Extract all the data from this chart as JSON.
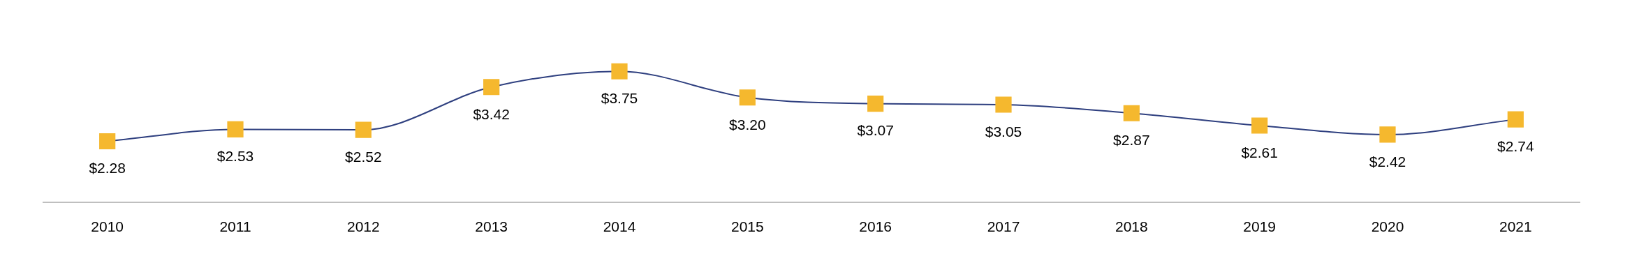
{
  "chart_data": {
    "type": "line",
    "categories": [
      "2010",
      "2011",
      "2012",
      "2013",
      "2014",
      "2015",
      "2016",
      "2017",
      "2018",
      "2019",
      "2020",
      "2021"
    ],
    "series": [
      {
        "color": "#2e3f7f",
        "values": [
          2.28,
          2.53,
          2.52,
          3.42,
          3.75,
          3.2,
          3.07,
          3.05,
          2.87,
          2.61,
          2.42,
          2.74
        ],
        "colors": [
          "#f5b82e",
          "#f5b82e",
          "#f5b82e",
          "#f5b82e",
          "#f5b82e",
          "#f5b82e",
          "#f5b82e",
          "#f5b82e",
          "#f5b82e",
          "#f5b82e",
          "#f5b82e",
          "#f5b82e"
        ],
        "value_labels": [
          "$2.28",
          "$2.53",
          "$2.52",
          "$3.42",
          "$3.75",
          "$3.20",
          "$3.07",
          "$3.05",
          "$2.87",
          "$2.61",
          "$2.42",
          "$2.74"
        ]
      }
    ],
    "marker": "square",
    "line_style": "solid",
    "grid": false,
    "legend": false,
    "tick_labels": "x"
  }
}
